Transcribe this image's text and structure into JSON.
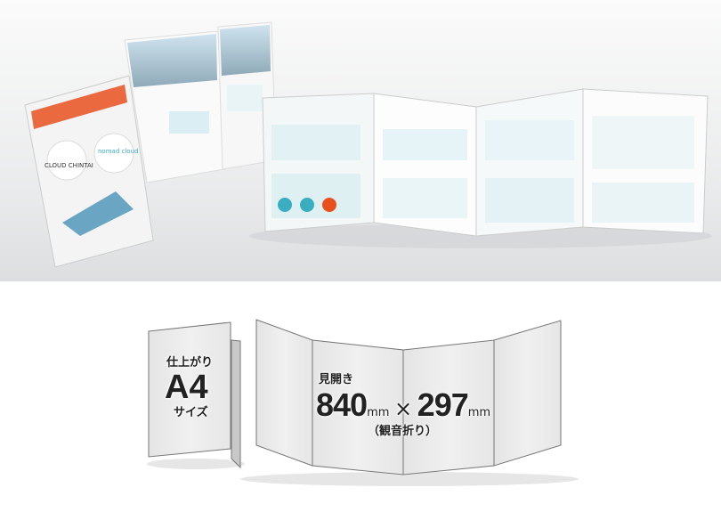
{
  "photo": {
    "cover_logo_1": "CLOUD CHINTAI",
    "cover_logo_2": "nomad cloud"
  },
  "diagram": {
    "a4": {
      "label_top": "仕上がり",
      "size": "A4",
      "label_bottom": "サイズ"
    },
    "spread": {
      "label": "見開き",
      "width_value": "840",
      "width_unit": "mm",
      "times": "×",
      "height_value": "297",
      "height_unit": "mm",
      "fold_type": "（観音折り）"
    }
  },
  "colors": {
    "accent_orange": "#e8501e",
    "accent_teal": "#3aaec0",
    "panel_gray": "#ececec"
  }
}
